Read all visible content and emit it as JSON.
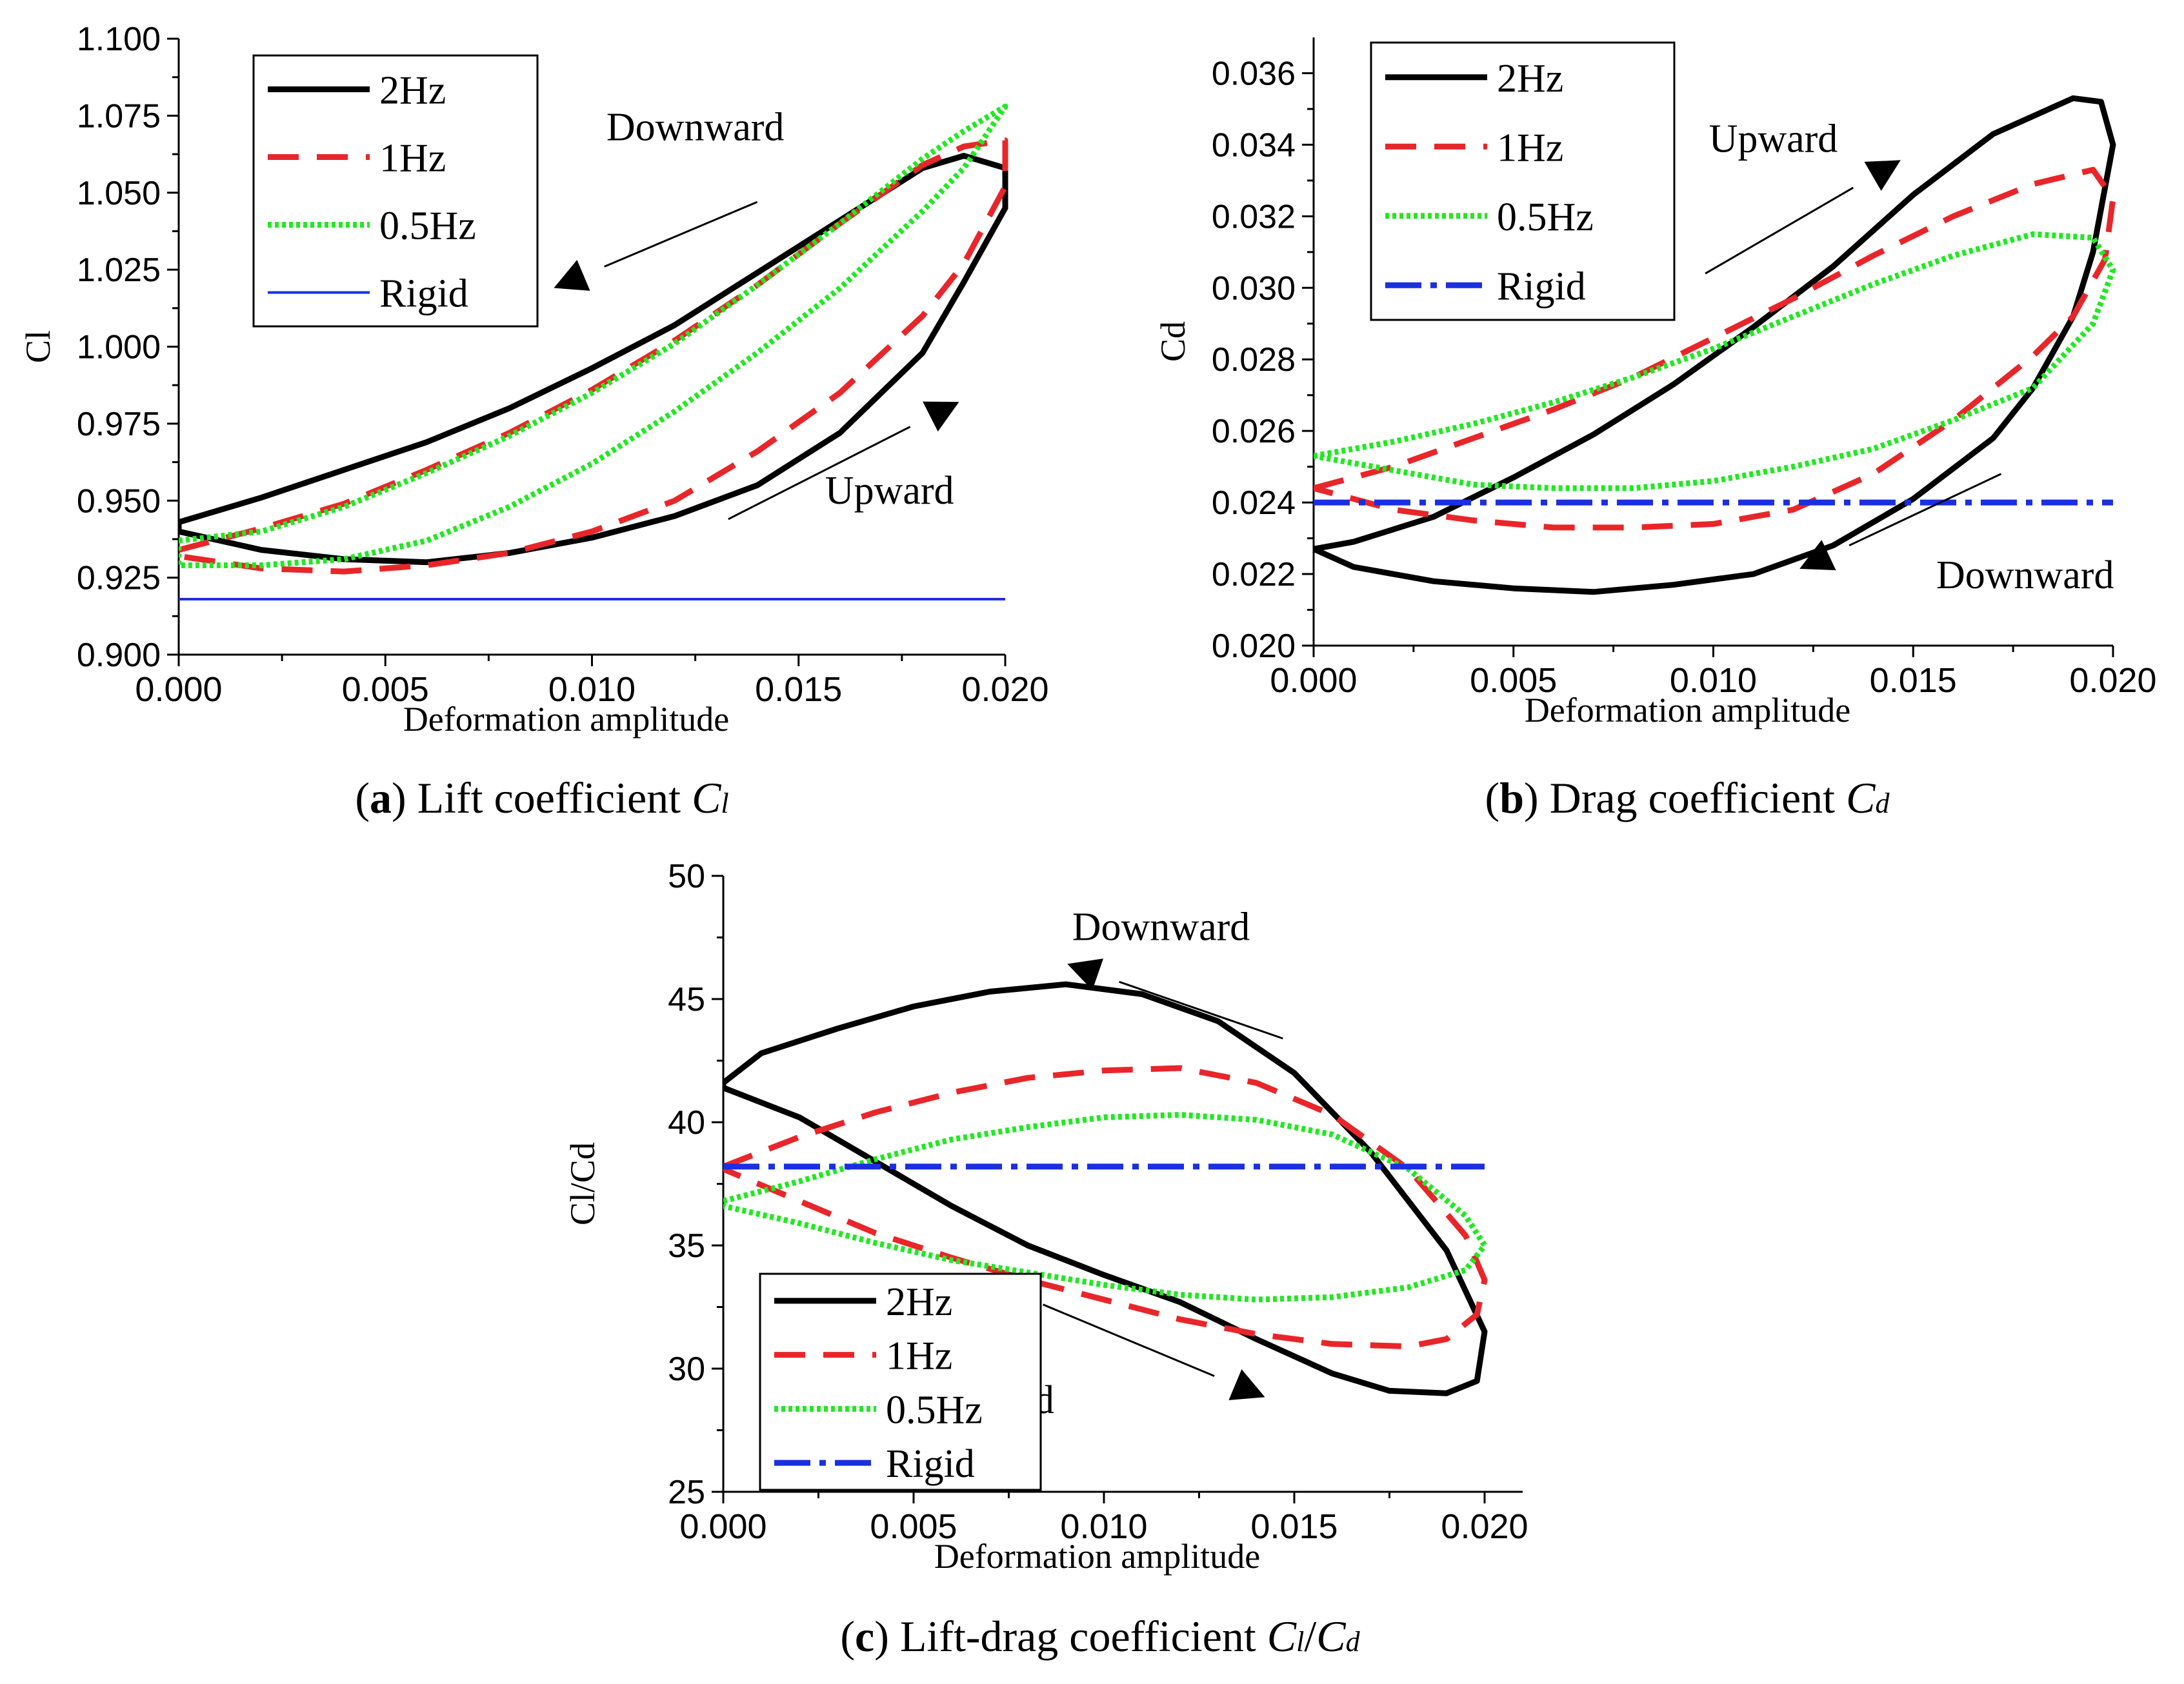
{
  "colors": {
    "2Hz": "#000000",
    "1Hz": "#e8262a",
    "0.5Hz": "#22e822",
    "Rigid": "#1a2fe0",
    "axis": "#000000"
  },
  "chart_data": [
    {
      "id": "a",
      "type": "line",
      "caption": {
        "letter": "a",
        "text": " Lift coefficient ",
        "symbol": "C",
        "sub": "l"
      },
      "ylabel": "Cl",
      "xlabel": "Deformation amplitude",
      "xlim": [
        0,
        0.02
      ],
      "ylim": [
        0.9,
        1.1
      ],
      "xticks": [
        "0.000",
        "0.005",
        "0.010",
        "0.015",
        "0.020"
      ],
      "yticks": [
        "0.900",
        "0.925",
        "0.950",
        "0.975",
        "1.000",
        "1.025",
        "1.050",
        "1.075",
        "1.100"
      ],
      "legend": {
        "placement": "top-left",
        "items": [
          "2Hz",
          "1Hz",
          "0.5Hz",
          "Rigid"
        ]
      },
      "annotations": [
        {
          "text": "Downward",
          "at": [
            0.0125,
            1.067
          ],
          "line": [
            [
              0.014,
              1.047
            ],
            [
              0.0103,
              1.026
            ]
          ]
        },
        {
          "text": "Upward",
          "at": [
            0.0172,
            0.949
          ],
          "line": [
            [
              0.0133,
              0.944
            ],
            [
              0.0177,
              0.974
            ]
          ]
        }
      ],
      "series": [
        {
          "name": "2Hz",
          "style": "solid",
          "x": [
            0.0,
            0.002,
            0.004,
            0.006,
            0.008,
            0.01,
            0.012,
            0.014,
            0.016,
            0.018,
            0.019,
            0.02,
            0.02,
            0.019,
            0.018,
            0.016,
            0.014,
            0.012,
            0.01,
            0.008,
            0.006,
            0.004,
            0.002,
            0.0
          ],
          "y": [
            0.943,
            0.951,
            0.96,
            0.969,
            0.98,
            0.993,
            1.007,
            1.024,
            1.041,
            1.058,
            1.062,
            1.058,
            1.045,
            1.021,
            0.998,
            0.972,
            0.955,
            0.945,
            0.938,
            0.933,
            0.93,
            0.931,
            0.934,
            0.94
          ]
        },
        {
          "name": "1Hz",
          "style": "dashed",
          "x": [
            0.0,
            0.002,
            0.004,
            0.006,
            0.008,
            0.01,
            0.012,
            0.014,
            0.016,
            0.018,
            0.019,
            0.02,
            0.02,
            0.019,
            0.018,
            0.016,
            0.014,
            0.012,
            0.01,
            0.008,
            0.006,
            0.004,
            0.002,
            0.0
          ],
          "y": [
            0.934,
            0.941,
            0.949,
            0.96,
            0.972,
            0.986,
            1.002,
            1.02,
            1.04,
            1.059,
            1.065,
            1.067,
            1.052,
            1.027,
            1.01,
            0.985,
            0.966,
            0.95,
            0.94,
            0.933,
            0.929,
            0.927,
            0.928,
            0.932
          ]
        },
        {
          "name": "0.5Hz",
          "style": "dotted",
          "x": [
            0.0,
            0.002,
            0.004,
            0.006,
            0.008,
            0.01,
            0.012,
            0.014,
            0.016,
            0.018,
            0.019,
            0.02,
            0.019,
            0.018,
            0.016,
            0.014,
            0.012,
            0.01,
            0.008,
            0.006,
            0.004,
            0.002,
            0.0
          ],
          "y": [
            0.937,
            0.94,
            0.948,
            0.959,
            0.971,
            0.985,
            1.001,
            1.02,
            1.04,
            1.061,
            1.07,
            1.078,
            1.058,
            1.044,
            1.019,
            0.998,
            0.979,
            0.962,
            0.948,
            0.937,
            0.931,
            0.929,
            0.929
          ]
        },
        {
          "name": "Rigid",
          "style": "thin",
          "x": [
            0.0,
            0.02
          ],
          "y": [
            0.918,
            0.918
          ]
        }
      ]
    },
    {
      "id": "b",
      "type": "line",
      "caption": {
        "letter": "b",
        "text": " Drag coefficient ",
        "symbol": "C",
        "sub": "d"
      },
      "ylabel": "Cd",
      "xlabel": "Deformation amplitude",
      "xlim": [
        0,
        0.02
      ],
      "ylim": [
        0.02,
        0.037
      ],
      "xticks": [
        "0.000",
        "0.005",
        "0.010",
        "0.015",
        "0.020"
      ],
      "yticks": [
        "0.020",
        "0.022",
        "0.024",
        "0.026",
        "0.028",
        "0.030",
        "0.032",
        "0.034",
        "0.036"
      ],
      "legend": {
        "placement": "top-left",
        "items": [
          "2Hz",
          "1Hz",
          "0.5Hz",
          "Rigid"
        ]
      },
      "annotations": [
        {
          "text": "Upward",
          "at": [
            0.0115,
            0.0338
          ],
          "line": [
            [
              0.0098,
              0.0304
            ],
            [
              0.0135,
              0.0328
            ]
          ]
        },
        {
          "text": "Downward",
          "at": [
            0.0178,
            0.0216
          ],
          "line": [
            [
              0.0172,
              0.0248
            ],
            [
              0.0134,
              0.0228
            ]
          ]
        }
      ],
      "series": [
        {
          "name": "2Hz",
          "style": "solid",
          "x": [
            0.0,
            0.001,
            0.003,
            0.005,
            0.007,
            0.009,
            0.011,
            0.013,
            0.015,
            0.017,
            0.019,
            0.0197,
            0.02,
            0.0195,
            0.019,
            0.018,
            0.017,
            0.015,
            0.013,
            0.011,
            0.009,
            0.007,
            0.005,
            0.003,
            0.001,
            0.0
          ],
          "y": [
            0.0227,
            0.0229,
            0.0236,
            0.0247,
            0.0259,
            0.0273,
            0.0289,
            0.0306,
            0.0326,
            0.0343,
            0.0353,
            0.0352,
            0.034,
            0.031,
            0.0292,
            0.0272,
            0.0258,
            0.0241,
            0.0228,
            0.022,
            0.0217,
            0.0215,
            0.0216,
            0.0218,
            0.0222,
            0.0227
          ]
        },
        {
          "name": "1Hz",
          "style": "dashed",
          "x": [
            0.0,
            0.002,
            0.004,
            0.006,
            0.008,
            0.01,
            0.012,
            0.014,
            0.016,
            0.018,
            0.0195,
            0.02,
            0.0198,
            0.019,
            0.018,
            0.016,
            0.014,
            0.012,
            0.01,
            0.008,
            0.006,
            0.004,
            0.002,
            0.0
          ],
          "y": [
            0.0244,
            0.025,
            0.0258,
            0.0266,
            0.0275,
            0.0286,
            0.0297,
            0.0309,
            0.032,
            0.0329,
            0.0333,
            0.0325,
            0.0308,
            0.0292,
            0.0281,
            0.0263,
            0.0248,
            0.0238,
            0.0234,
            0.0233,
            0.0233,
            0.0235,
            0.0238,
            0.0244
          ]
        },
        {
          "name": "0.5Hz",
          "style": "dotted",
          "x": [
            0.0,
            0.002,
            0.004,
            0.006,
            0.008,
            0.01,
            0.012,
            0.014,
            0.016,
            0.018,
            0.0195,
            0.02,
            0.0195,
            0.018,
            0.016,
            0.014,
            0.012,
            0.01,
            0.008,
            0.006,
            0.004,
            0.002,
            0.0
          ],
          "y": [
            0.0253,
            0.0257,
            0.0262,
            0.0268,
            0.0275,
            0.0283,
            0.0292,
            0.0301,
            0.0309,
            0.0315,
            0.0314,
            0.0305,
            0.029,
            0.0272,
            0.0263,
            0.0255,
            0.025,
            0.0246,
            0.0244,
            0.0244,
            0.0245,
            0.0249,
            0.0253
          ]
        },
        {
          "name": "Rigid",
          "style": "dashdot",
          "x": [
            0.0,
            0.02
          ],
          "y": [
            0.024,
            0.024
          ]
        }
      ]
    },
    {
      "id": "c",
      "type": "line",
      "caption": {
        "letter": "c",
        "text": " Lift-drag coefficient ",
        "symbol": "C",
        "sub": "l",
        "symbol2": "C",
        "sub2": "d"
      },
      "ylabel": "Cl/Cd",
      "xlabel": "Deformation amplitude",
      "xlim": [
        0,
        0.021
      ],
      "ylim": [
        25,
        50
      ],
      "xticks": [
        "0.000",
        "0.005",
        "0.010",
        "0.015",
        "0.020"
      ],
      "yticks": [
        "25",
        "30",
        "35",
        "40",
        "45",
        "50"
      ],
      "legend": {
        "placement": "bottom-left",
        "items": [
          "2Hz",
          "1Hz",
          "0.5Hz",
          "Rigid"
        ]
      },
      "annotations": [
        {
          "text": "Downward",
          "at": [
            0.0115,
            47.4
          ],
          "line": [
            [
              0.0147,
              43.4
            ],
            [
              0.0104,
              45.7
            ]
          ]
        },
        {
          "text": "Upward",
          "at": [
            0.007,
            28.2
          ],
          "line": [
            [
              0.0084,
              32.6
            ],
            [
              0.0129,
              29.7
            ]
          ]
        }
      ],
      "series": [
        {
          "name": "2Hz",
          "style": "solid",
          "x": [
            0.0,
            0.001,
            0.003,
            0.005,
            0.007,
            0.009,
            0.011,
            0.013,
            0.015,
            0.017,
            0.019,
            0.02,
            0.0198,
            0.019,
            0.0175,
            0.016,
            0.014,
            0.012,
            0.01,
            0.008,
            0.006,
            0.004,
            0.002,
            0.0
          ],
          "y": [
            41.6,
            42.8,
            43.8,
            44.7,
            45.3,
            45.6,
            45.2,
            44.1,
            42.0,
            38.8,
            34.8,
            31.5,
            29.5,
            29.0,
            29.1,
            29.8,
            31.2,
            32.7,
            33.8,
            35.0,
            36.6,
            38.4,
            40.2,
            41.4
          ]
        },
        {
          "name": "1Hz",
          "style": "dashed",
          "x": [
            0.0,
            0.002,
            0.004,
            0.006,
            0.008,
            0.01,
            0.012,
            0.014,
            0.016,
            0.018,
            0.0195,
            0.02,
            0.0198,
            0.019,
            0.018,
            0.016,
            0.014,
            0.012,
            0.01,
            0.008,
            0.006,
            0.004,
            0.002,
            0.0
          ],
          "y": [
            38.2,
            39.4,
            40.4,
            41.2,
            41.8,
            42.1,
            42.2,
            41.6,
            40.3,
            38.1,
            35.4,
            33.6,
            32.2,
            31.2,
            30.9,
            31.0,
            31.4,
            32.0,
            32.8,
            33.6,
            34.5,
            35.5,
            36.8,
            38.1
          ]
        },
        {
          "name": "0.5Hz",
          "style": "dotted",
          "x": [
            0.0,
            0.002,
            0.004,
            0.006,
            0.008,
            0.01,
            0.012,
            0.014,
            0.016,
            0.018,
            0.0195,
            0.02,
            0.0195,
            0.018,
            0.016,
            0.014,
            0.012,
            0.01,
            0.008,
            0.006,
            0.004,
            0.002,
            0.0
          ],
          "y": [
            36.8,
            37.6,
            38.5,
            39.3,
            39.8,
            40.2,
            40.3,
            40.1,
            39.5,
            38.1,
            36.2,
            35.0,
            34.0,
            33.3,
            32.9,
            32.8,
            33.0,
            33.4,
            33.9,
            34.4,
            35.1,
            35.9,
            36.6
          ]
        },
        {
          "name": "Rigid",
          "style": "dashdot",
          "x": [
            0.0,
            0.02
          ],
          "y": [
            38.2,
            38.2
          ]
        }
      ]
    }
  ]
}
